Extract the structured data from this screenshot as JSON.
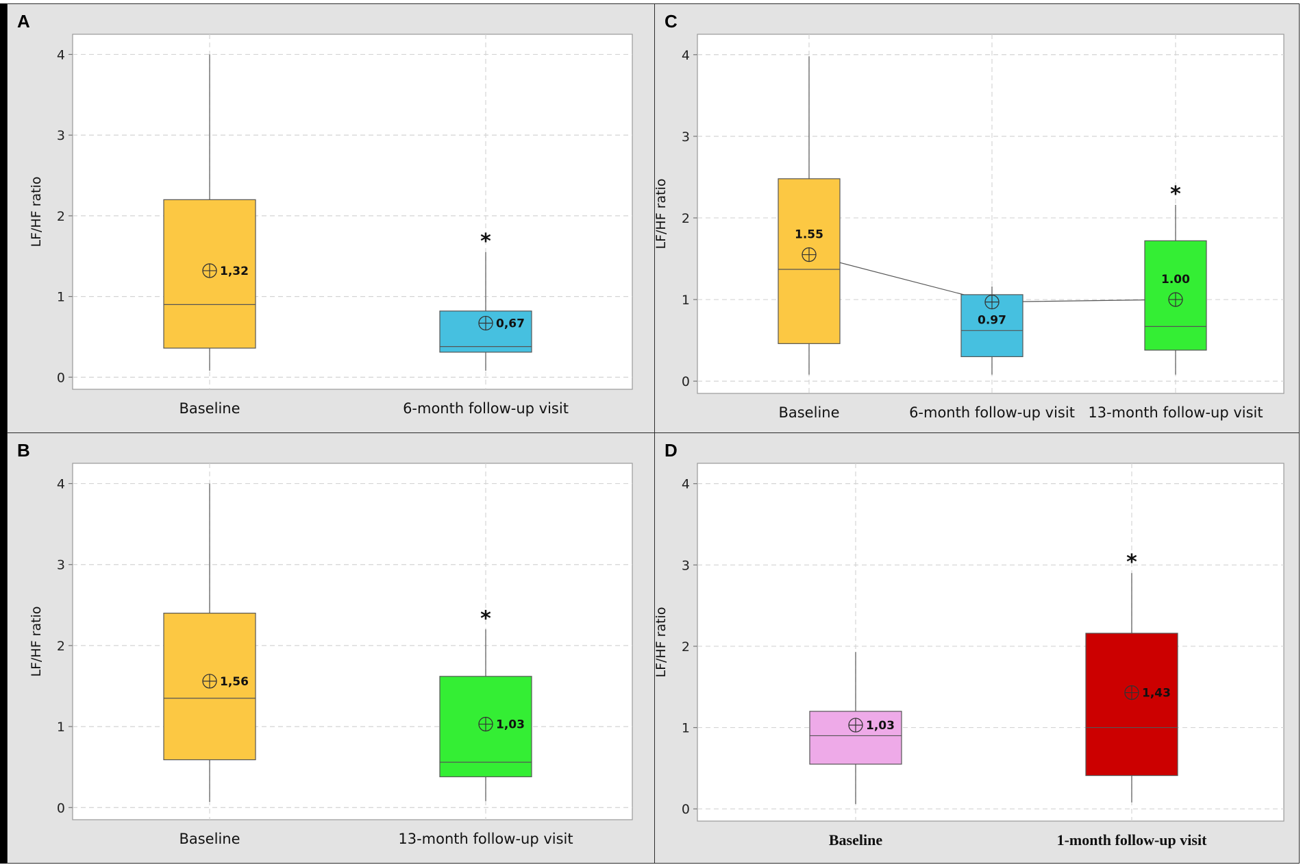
{
  "chart_data": [
    {
      "panel": "A",
      "type": "box",
      "ylabel": "LF/HF ratio",
      "ylim": [
        -0.15,
        4.25
      ],
      "yticks": [
        0,
        1,
        2,
        3,
        4
      ],
      "categories": [
        "Baseline",
        "6-month follow-up visit"
      ],
      "boxes": [
        {
          "category": "Baseline",
          "color": "#fcc843",
          "whisker_low": 0.08,
          "q1": 0.36,
          "median": 0.9,
          "q3": 2.2,
          "whisker_high": 4.0,
          "mean": 1.32,
          "mean_label": "1,32",
          "significant": false
        },
        {
          "category": "6-month follow-up visit",
          "color": "#46c0e0",
          "whisker_low": 0.08,
          "q1": 0.31,
          "median": 0.38,
          "q3": 0.82,
          "whisker_high": 1.55,
          "mean": 0.67,
          "mean_label": "0,67",
          "significant": true
        }
      ],
      "connect_means": false,
      "annotation": "*"
    },
    {
      "panel": "C",
      "type": "box",
      "ylabel": "LF/HF ratio",
      "ylim": [
        -0.15,
        4.25
      ],
      "yticks": [
        0,
        1,
        2,
        3,
        4
      ],
      "categories": [
        "Baseline",
        "6-month follow-up visit",
        "13-month follow-up visit"
      ],
      "boxes": [
        {
          "category": "Baseline",
          "color": "#fcc843",
          "whisker_low": 0.08,
          "q1": 0.46,
          "median": 1.37,
          "q3": 2.48,
          "whisker_high": 3.98,
          "mean": 1.55,
          "mean_label": "1.55",
          "significant": false
        },
        {
          "category": "6-month follow-up visit",
          "color": "#46c0e0",
          "whisker_low": 0.08,
          "q1": 0.3,
          "median": 0.62,
          "q3": 1.06,
          "whisker_high": 1.16,
          "mean": 0.97,
          "mean_label": "0.97",
          "significant": false
        },
        {
          "category": "13-month follow-up visit",
          "color": "#34ee34",
          "whisker_low": 0.08,
          "q1": 0.38,
          "median": 0.67,
          "q3": 1.72,
          "whisker_high": 2.16,
          "mean": 1.0,
          "mean_label": "1.00",
          "significant": true
        }
      ],
      "connect_means": true,
      "annotation": "*"
    },
    {
      "panel": "B",
      "type": "box",
      "ylabel": "LF/HF ratio",
      "ylim": [
        -0.15,
        4.25
      ],
      "yticks": [
        0,
        1,
        2,
        3,
        4
      ],
      "categories": [
        "Baseline",
        "13-month follow-up visit"
      ],
      "boxes": [
        {
          "category": "Baseline",
          "color": "#fcc843",
          "whisker_low": 0.07,
          "q1": 0.59,
          "median": 1.35,
          "q3": 2.4,
          "whisker_high": 4.0,
          "mean": 1.56,
          "mean_label": "1,56",
          "significant": false
        },
        {
          "category": "13-month follow-up visit",
          "color": "#34ee34",
          "whisker_low": 0.08,
          "q1": 0.38,
          "median": 0.56,
          "q3": 1.62,
          "whisker_high": 2.2,
          "mean": 1.03,
          "mean_label": "1,03",
          "significant": true
        }
      ],
      "connect_means": false,
      "annotation": "*"
    },
    {
      "panel": "D",
      "type": "box",
      "ylabel": "LF/HF ratio",
      "ylim": [
        -0.15,
        4.25
      ],
      "yticks": [
        0,
        1,
        2,
        3,
        4
      ],
      "categories": [
        "Baseline",
        "1-month follow-up visit"
      ],
      "boxes": [
        {
          "category": "Baseline",
          "color": "#eeaae8",
          "whisker_low": 0.06,
          "q1": 0.55,
          "median": 0.9,
          "q3": 1.2,
          "whisker_high": 1.93,
          "mean": 1.03,
          "mean_label": "1,03",
          "significant": false
        },
        {
          "category": "1-month follow-up visit",
          "color": "#cc0000",
          "whisker_low": 0.08,
          "q1": 0.41,
          "median": 1.0,
          "q3": 2.16,
          "whisker_high": 2.9,
          "mean": 1.43,
          "mean_label": "1,43",
          "significant": true
        }
      ],
      "connect_means": false,
      "annotation": "*"
    }
  ],
  "colors": {
    "panel_bg": "#e3e3e3",
    "plot_bg": "#ffffff",
    "grid": "#d4d4d4",
    "line": "#555555",
    "text": "#111111"
  }
}
